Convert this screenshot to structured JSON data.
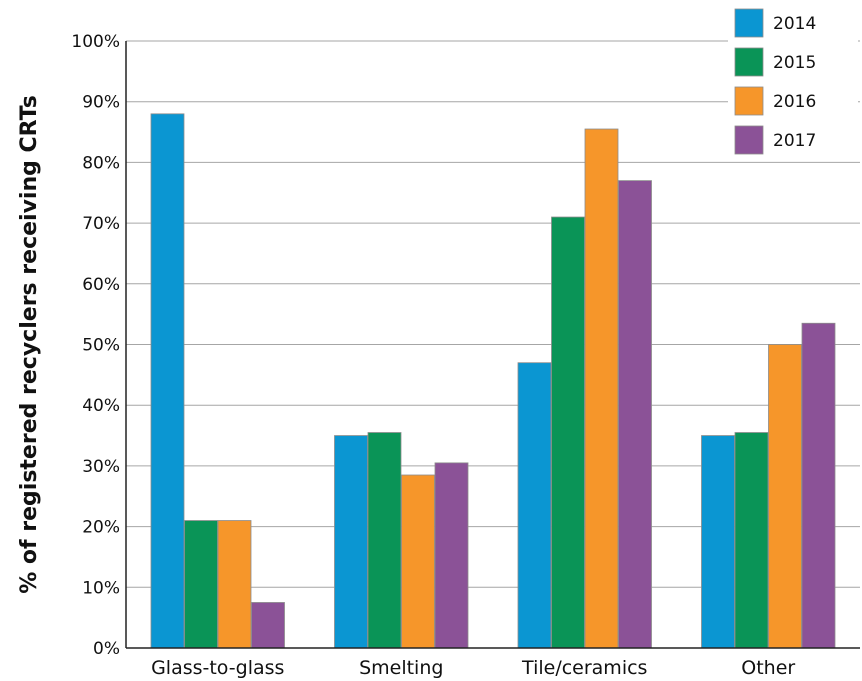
{
  "chart_data": {
    "type": "bar",
    "ylabel": "% of registered recyclers receiving CRTs",
    "xlabel": "",
    "ylim": [
      0,
      100
    ],
    "y_ticks": [
      "0%",
      "10%",
      "20%",
      "30%",
      "40%",
      "50%",
      "60%",
      "70%",
      "80%",
      "90%",
      "100%"
    ],
    "grid": true,
    "legend_position": "top-right",
    "categories": [
      "Glass-to-glass",
      "Smelting",
      "Tile/ceramics",
      "Other"
    ],
    "series": [
      {
        "name": "2014",
        "color": "#0b96d2",
        "values": [
          88,
          35,
          47,
          35
        ]
      },
      {
        "name": "2015",
        "color": "#0a9457",
        "values": [
          21,
          35.5,
          71,
          35.5
        ]
      },
      {
        "name": "2016",
        "color": "#f6962a",
        "values": [
          21,
          28.5,
          85.5,
          50
        ]
      },
      {
        "name": "2017",
        "color": "#8b5297",
        "values": [
          7.5,
          30.5,
          77,
          53.5
        ]
      }
    ]
  }
}
